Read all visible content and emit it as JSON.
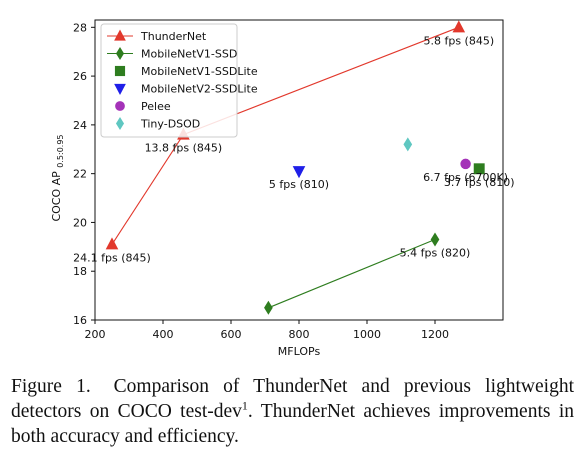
{
  "chart_data": {
    "type": "scatter",
    "title": "",
    "xlabel": "MFLOPs",
    "ylabel": "COCO AP",
    "ylabel_subscript": "0.5:0.95",
    "xlim": [
      200,
      1400
    ],
    "ylim": [
      16,
      28.3
    ],
    "x_ticks": [
      200,
      400,
      600,
      800,
      1000,
      1200
    ],
    "y_ticks": [
      16,
      18,
      20,
      22,
      24,
      26,
      28
    ],
    "grid": false,
    "legend": "top-left",
    "series": [
      {
        "name": "ThunderNet",
        "marker": "triangle-up",
        "color": "#e2382c",
        "connected": true,
        "points": [
          {
            "x": 250,
            "y": 19.1,
            "label": "24.1 fps (845)"
          },
          {
            "x": 460,
            "y": 23.6,
            "label": "13.8 fps (845)"
          },
          {
            "x": 1270,
            "y": 28.0,
            "label": "5.8 fps (845)"
          }
        ]
      },
      {
        "name": "MobileNetV1-SSD",
        "marker": "diamond",
        "color": "#2e7d1f",
        "connected": true,
        "points": [
          {
            "x": 710,
            "y": 16.5,
            "label": ""
          },
          {
            "x": 1200,
            "y": 19.3,
            "label": "5.4 fps (820)"
          }
        ]
      },
      {
        "name": "MobileNetV1-SSDLite",
        "marker": "square",
        "color": "#2e7d1f",
        "connected": false,
        "points": [
          {
            "x": 1330,
            "y": 22.2,
            "label": "3.7 fps (810)"
          }
        ]
      },
      {
        "name": "MobileNetV2-SSDLite",
        "marker": "triangle-down",
        "color": "#1f1fe8",
        "connected": false,
        "points": [
          {
            "x": 800,
            "y": 22.1,
            "label": "5 fps (810)"
          }
        ]
      },
      {
        "name": "Pelee",
        "marker": "circle",
        "color": "#a432b8",
        "connected": false,
        "points": [
          {
            "x": 1290,
            "y": 22.4,
            "label": "6.7 fps (6700K)"
          }
        ]
      },
      {
        "name": "Tiny-DSOD",
        "marker": "diamond",
        "color": "#5fc7c1",
        "connected": false,
        "points": [
          {
            "x": 1120,
            "y": 23.2,
            "label": ""
          }
        ]
      }
    ]
  },
  "caption": {
    "label": "Figure 1.",
    "text": "Comparison of ThunderNet and previous lightweight detectors on COCO test-dev",
    "superscript": "1",
    "text_after": ". ThunderNet achieves improvements in both accuracy and efficiency."
  }
}
